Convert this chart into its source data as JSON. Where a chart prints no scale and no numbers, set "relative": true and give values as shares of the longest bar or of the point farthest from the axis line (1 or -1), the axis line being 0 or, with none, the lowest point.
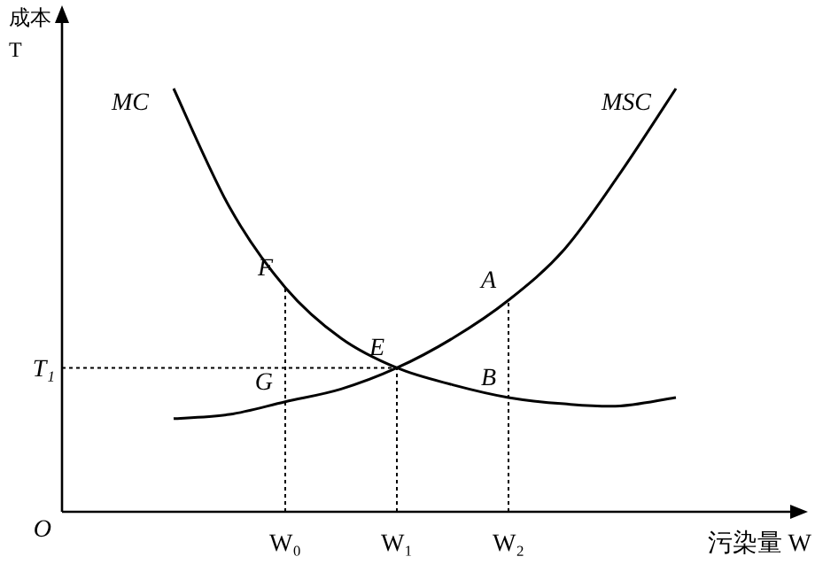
{
  "chart_data": {
    "type": "line",
    "relative": true,
    "xlabel": "污染量 W",
    "ylabel": "成本 T",
    "categories": [
      null,
      null,
      null,
      "W₀",
      null,
      "W₁",
      null,
      "W₂",
      null,
      null,
      null,
      null
    ],
    "series": [
      {
        "name": "MC",
        "color": "#000000",
        "values": [
          null,
          1,
          0.72,
          0.53,
          0.41,
          0.34,
          0.3,
          0.27,
          0.255,
          0.25,
          0.27,
          null
        ]
      },
      {
        "name": "MSC",
        "color": "#000000",
        "values": [
          null,
          0.22,
          0.23,
          0.26,
          0.29,
          0.34,
          0.41,
          0.5,
          0.62,
          0.8,
          1,
          null
        ]
      }
    ],
    "ref_lines": [
      {
        "axis": "x",
        "value": "W₀",
        "line_style": "dotted"
      },
      {
        "axis": "x",
        "value": "W₁",
        "line_style": "dotted"
      },
      {
        "axis": "x",
        "value": "W₂",
        "line_style": "dotted"
      },
      {
        "axis": "y",
        "value": 0.34,
        "label": "T₁",
        "line_style": "dotted"
      }
    ],
    "annotations": [
      {
        "text": "F",
        "x": "W₀",
        "y": 0.53
      },
      {
        "text": "G",
        "x": "W₀",
        "y": 0.26
      },
      {
        "text": "E",
        "x": "W₁",
        "y": 0.34
      },
      {
        "text": "A",
        "x": "W₂",
        "y": 0.5
      },
      {
        "text": "B",
        "x": "W₂",
        "y": 0.27
      },
      "O"
    ]
  }
}
